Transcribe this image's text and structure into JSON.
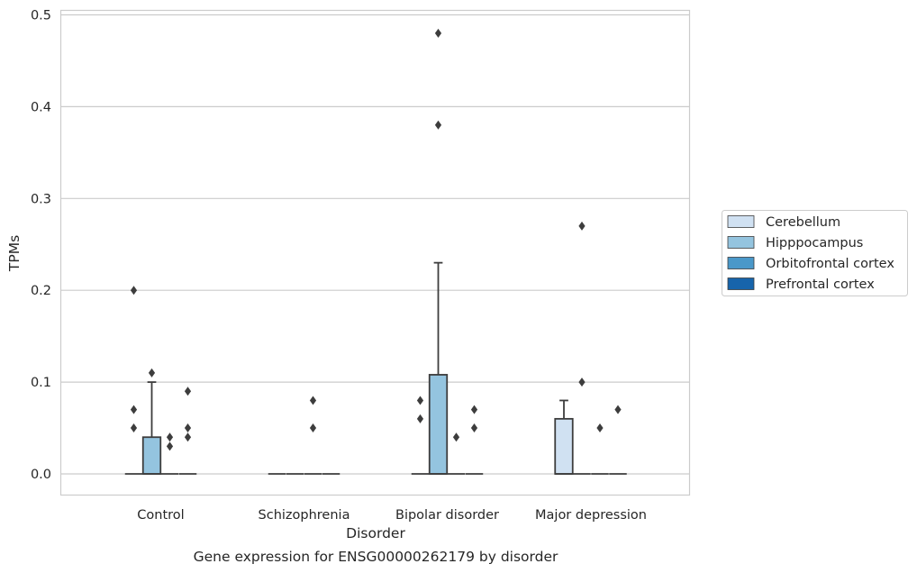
{
  "chart_data": {
    "type": "box",
    "title": "",
    "caption": "Gene expression for ENSG00000262179 by disorder",
    "xlabel": "Disorder",
    "ylabel": "TPMs",
    "ylim": [
      -0.023,
      0.505
    ],
    "yticks": [
      "0.0",
      "0.1",
      "0.2",
      "0.3",
      "0.4",
      "0.5"
    ],
    "ytick_values": [
      0,
      0.1,
      0.2,
      0.3,
      0.4,
      0.5
    ],
    "grid": true,
    "legend_position": "center-right",
    "categories": [
      "Control",
      "Schizophrenia",
      "Bipolar disorder",
      "Major depression"
    ],
    "series": [
      {
        "name": "Cerebellum",
        "color": "#d0e1f2",
        "boxes": [
          {
            "q1": 0,
            "median": 0,
            "q3": 0,
            "whisker_low": 0,
            "whisker_high": 0,
            "outliers": [
              0.07,
              0.05,
              0.2
            ]
          },
          {
            "q1": 0,
            "median": 0,
            "q3": 0,
            "whisker_low": 0,
            "whisker_high": 0,
            "outliers": []
          },
          {
            "q1": 0,
            "median": 0,
            "q3": 0,
            "whisker_low": 0,
            "whisker_high": 0,
            "outliers": [
              0.08,
              0.06
            ]
          },
          {
            "q1": 0,
            "median": 0,
            "q3": 0.06,
            "whisker_low": 0,
            "whisker_high": 0.08,
            "outliers": []
          }
        ]
      },
      {
        "name": "Hipppocampus",
        "color": "#94c4df",
        "boxes": [
          {
            "q1": 0,
            "median": 0,
            "q3": 0.04,
            "whisker_low": 0,
            "whisker_high": 0.1,
            "outliers": [
              0.11
            ]
          },
          {
            "q1": 0,
            "median": 0,
            "q3": 0,
            "whisker_low": 0,
            "whisker_high": 0,
            "outliers": []
          },
          {
            "q1": 0,
            "median": 0,
            "q3": 0.108,
            "whisker_low": 0,
            "whisker_high": 0.23,
            "outliers": [
              0.48,
              0.38
            ]
          },
          {
            "q1": 0,
            "median": 0,
            "q3": 0,
            "whisker_low": 0,
            "whisker_high": 0,
            "outliers": [
              0.27,
              0.1
            ]
          }
        ]
      },
      {
        "name": "Orbitofrontal cortex",
        "color": "#4a98c9",
        "boxes": [
          {
            "q1": 0,
            "median": 0,
            "q3": 0,
            "whisker_low": 0,
            "whisker_high": 0,
            "outliers": [
              0.04,
              0.03
            ]
          },
          {
            "q1": 0,
            "median": 0,
            "q3": 0,
            "whisker_low": 0,
            "whisker_high": 0,
            "outliers": [
              0.08,
              0.05
            ]
          },
          {
            "q1": 0,
            "median": 0,
            "q3": 0,
            "whisker_low": 0,
            "whisker_high": 0,
            "outliers": [
              0.04
            ]
          },
          {
            "q1": 0,
            "median": 0,
            "q3": 0,
            "whisker_low": 0,
            "whisker_high": 0,
            "outliers": [
              0.05
            ]
          }
        ]
      },
      {
        "name": "Prefrontal cortex",
        "color": "#1764ab",
        "boxes": [
          {
            "q1": 0,
            "median": 0,
            "q3": 0,
            "whisker_low": 0,
            "whisker_high": 0,
            "outliers": [
              0.09,
              0.05,
              0.04
            ]
          },
          {
            "q1": 0,
            "median": 0,
            "q3": 0,
            "whisker_low": 0,
            "whisker_high": 0,
            "outliers": []
          },
          {
            "q1": 0,
            "median": 0,
            "q3": 0,
            "whisker_low": 0,
            "whisker_high": 0,
            "outliers": [
              0.07,
              0.05
            ]
          },
          {
            "q1": 0,
            "median": 0,
            "q3": 0,
            "whisker_low": 0,
            "whisker_high": 0,
            "outliers": [
              0.07
            ]
          }
        ]
      }
    ]
  },
  "colors": {
    "grid": "#cccccc",
    "frame": "#cccccc",
    "box_edge": "#3d3d3d"
  }
}
